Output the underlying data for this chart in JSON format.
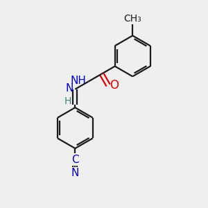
{
  "bg_color": "#efefef",
  "line_color": "#1a1a1a",
  "bond_width": 1.6,
  "atom_colors": {
    "O": "#e00000",
    "N": "#0000cc",
    "C": "#1a1a1a",
    "H": "#408080"
  },
  "font_size": 10,
  "figsize": [
    3.0,
    3.0
  ],
  "dpi": 100,
  "xlim": [
    0,
    10
  ],
  "ylim": [
    0,
    10
  ]
}
